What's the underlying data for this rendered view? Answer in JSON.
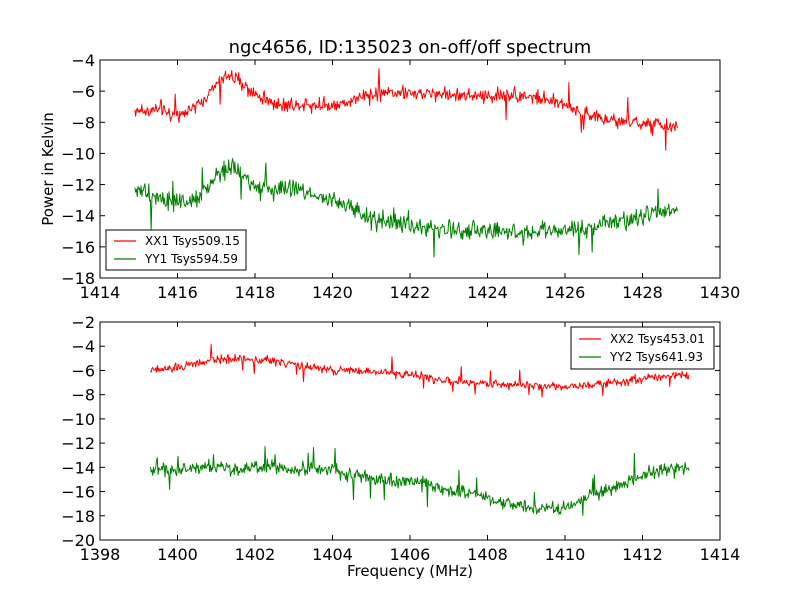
{
  "chart_data": [
    {
      "type": "line",
      "title": "ngc4656, ID:135023 on-off/off spectrum",
      "xlabel": "",
      "ylabel": "Power in Kelvin",
      "xlim": [
        1414,
        1430
      ],
      "ylim": [
        -18,
        -4
      ],
      "xticks": [
        "1414",
        "1416",
        "1418",
        "1420",
        "1422",
        "1424",
        "1426",
        "1428",
        "1430"
      ],
      "yticks": [
        "−4",
        "−6",
        "−8",
        "−10",
        "−12",
        "−14",
        "−16",
        "−18"
      ],
      "legend_position": "lower-left",
      "series": [
        {
          "name": "XX1 Tsys509.15",
          "color": "#ff0000",
          "x": [
            1414.9,
            1415.5,
            1416.0,
            1416.5,
            1417.0,
            1417.3,
            1417.6,
            1418.0,
            1418.5,
            1419.0,
            1419.5,
            1420.0,
            1420.5,
            1421.0,
            1421.5,
            1422.0,
            1422.5,
            1423.0,
            1423.5,
            1424.0,
            1424.5,
            1425.0,
            1425.5,
            1426.0,
            1426.5,
            1427.0,
            1427.5,
            1428.0,
            1428.5,
            1428.9
          ],
          "values": [
            -7.2,
            -7.3,
            -7.5,
            -7.0,
            -5.6,
            -4.9,
            -5.4,
            -6.2,
            -6.8,
            -6.9,
            -6.8,
            -6.9,
            -6.6,
            -6.2,
            -6.0,
            -6.2,
            -6.1,
            -6.2,
            -6.3,
            -6.3,
            -6.2,
            -6.3,
            -6.6,
            -6.9,
            -7.4,
            -7.8,
            -8.0,
            -8.1,
            -8.2,
            -8.3
          ],
          "noise": 0.6
        },
        {
          "name": "YY1 Tsys594.59",
          "color": "#008000",
          "x": [
            1414.9,
            1415.5,
            1416.0,
            1416.5,
            1417.0,
            1417.3,
            1417.6,
            1418.0,
            1418.5,
            1419.0,
            1419.5,
            1420.0,
            1420.5,
            1421.0,
            1421.5,
            1422.0,
            1422.5,
            1423.0,
            1423.5,
            1424.0,
            1424.5,
            1425.0,
            1425.5,
            1426.0,
            1426.5,
            1427.0,
            1427.5,
            1428.0,
            1428.5,
            1428.9
          ],
          "values": [
            -12.3,
            -12.8,
            -13.3,
            -13.1,
            -11.4,
            -10.9,
            -11.2,
            -12.0,
            -12.4,
            -12.3,
            -12.6,
            -13.0,
            -13.6,
            -14.2,
            -14.4,
            -14.6,
            -14.8,
            -14.9,
            -15.0,
            -14.9,
            -15.0,
            -15.1,
            -15.0,
            -15.0,
            -14.9,
            -14.4,
            -14.2,
            -14.1,
            -13.8,
            -13.5
          ],
          "noise": 0.8
        }
      ]
    },
    {
      "type": "line",
      "title": "",
      "xlabel": "Frequency (MHz)",
      "ylabel": "",
      "xlim": [
        1398,
        1414
      ],
      "ylim": [
        -20,
        -2
      ],
      "xticks": [
        "1398",
        "1400",
        "1402",
        "1404",
        "1406",
        "1408",
        "1410",
        "1412",
        "1414"
      ],
      "yticks": [
        "−2",
        "−4",
        "−6",
        "−8",
        "−10",
        "−12",
        "−14",
        "−16",
        "−18",
        "−20"
      ],
      "legend_position": "upper-right",
      "series": [
        {
          "name": "XX2 Tsys453.01",
          "color": "#ff0000",
          "x": [
            1399.3,
            1400.0,
            1400.5,
            1401.0,
            1401.5,
            1402.0,
            1402.5,
            1403.0,
            1403.5,
            1404.0,
            1404.5,
            1405.0,
            1405.5,
            1406.0,
            1406.5,
            1407.0,
            1407.5,
            1408.0,
            1408.5,
            1409.0,
            1409.5,
            1410.0,
            1410.5,
            1411.0,
            1411.5,
            1412.0,
            1412.5,
            1413.2
          ],
          "values": [
            -6.0,
            -5.8,
            -5.4,
            -5.1,
            -5.0,
            -5.1,
            -5.2,
            -5.5,
            -5.8,
            -6.0,
            -6.0,
            -6.1,
            -6.2,
            -6.3,
            -6.6,
            -6.9,
            -7.0,
            -7.1,
            -7.1,
            -7.2,
            -7.3,
            -7.3,
            -7.2,
            -7.0,
            -6.9,
            -6.7,
            -6.5,
            -6.3
          ],
          "noise": 0.45
        },
        {
          "name": "YY2 Tsys641.93",
          "color": "#008000",
          "x": [
            1399.3,
            1400.0,
            1400.5,
            1401.0,
            1401.5,
            1402.0,
            1402.5,
            1403.0,
            1403.5,
            1404.0,
            1404.5,
            1405.0,
            1405.5,
            1406.0,
            1406.5,
            1407.0,
            1407.5,
            1408.0,
            1408.5,
            1409.0,
            1409.5,
            1410.0,
            1410.5,
            1411.0,
            1411.5,
            1412.0,
            1412.5,
            1413.2
          ],
          "values": [
            -14.0,
            -14.2,
            -14.1,
            -14.0,
            -14.1,
            -14.0,
            -14.0,
            -14.2,
            -14.1,
            -14.2,
            -14.6,
            -14.9,
            -15.1,
            -15.2,
            -15.4,
            -15.8,
            -16.2,
            -16.7,
            -17.0,
            -17.3,
            -17.5,
            -17.3,
            -16.6,
            -15.9,
            -15.3,
            -14.6,
            -14.2,
            -14.1
          ],
          "noise": 0.75
        }
      ]
    }
  ]
}
